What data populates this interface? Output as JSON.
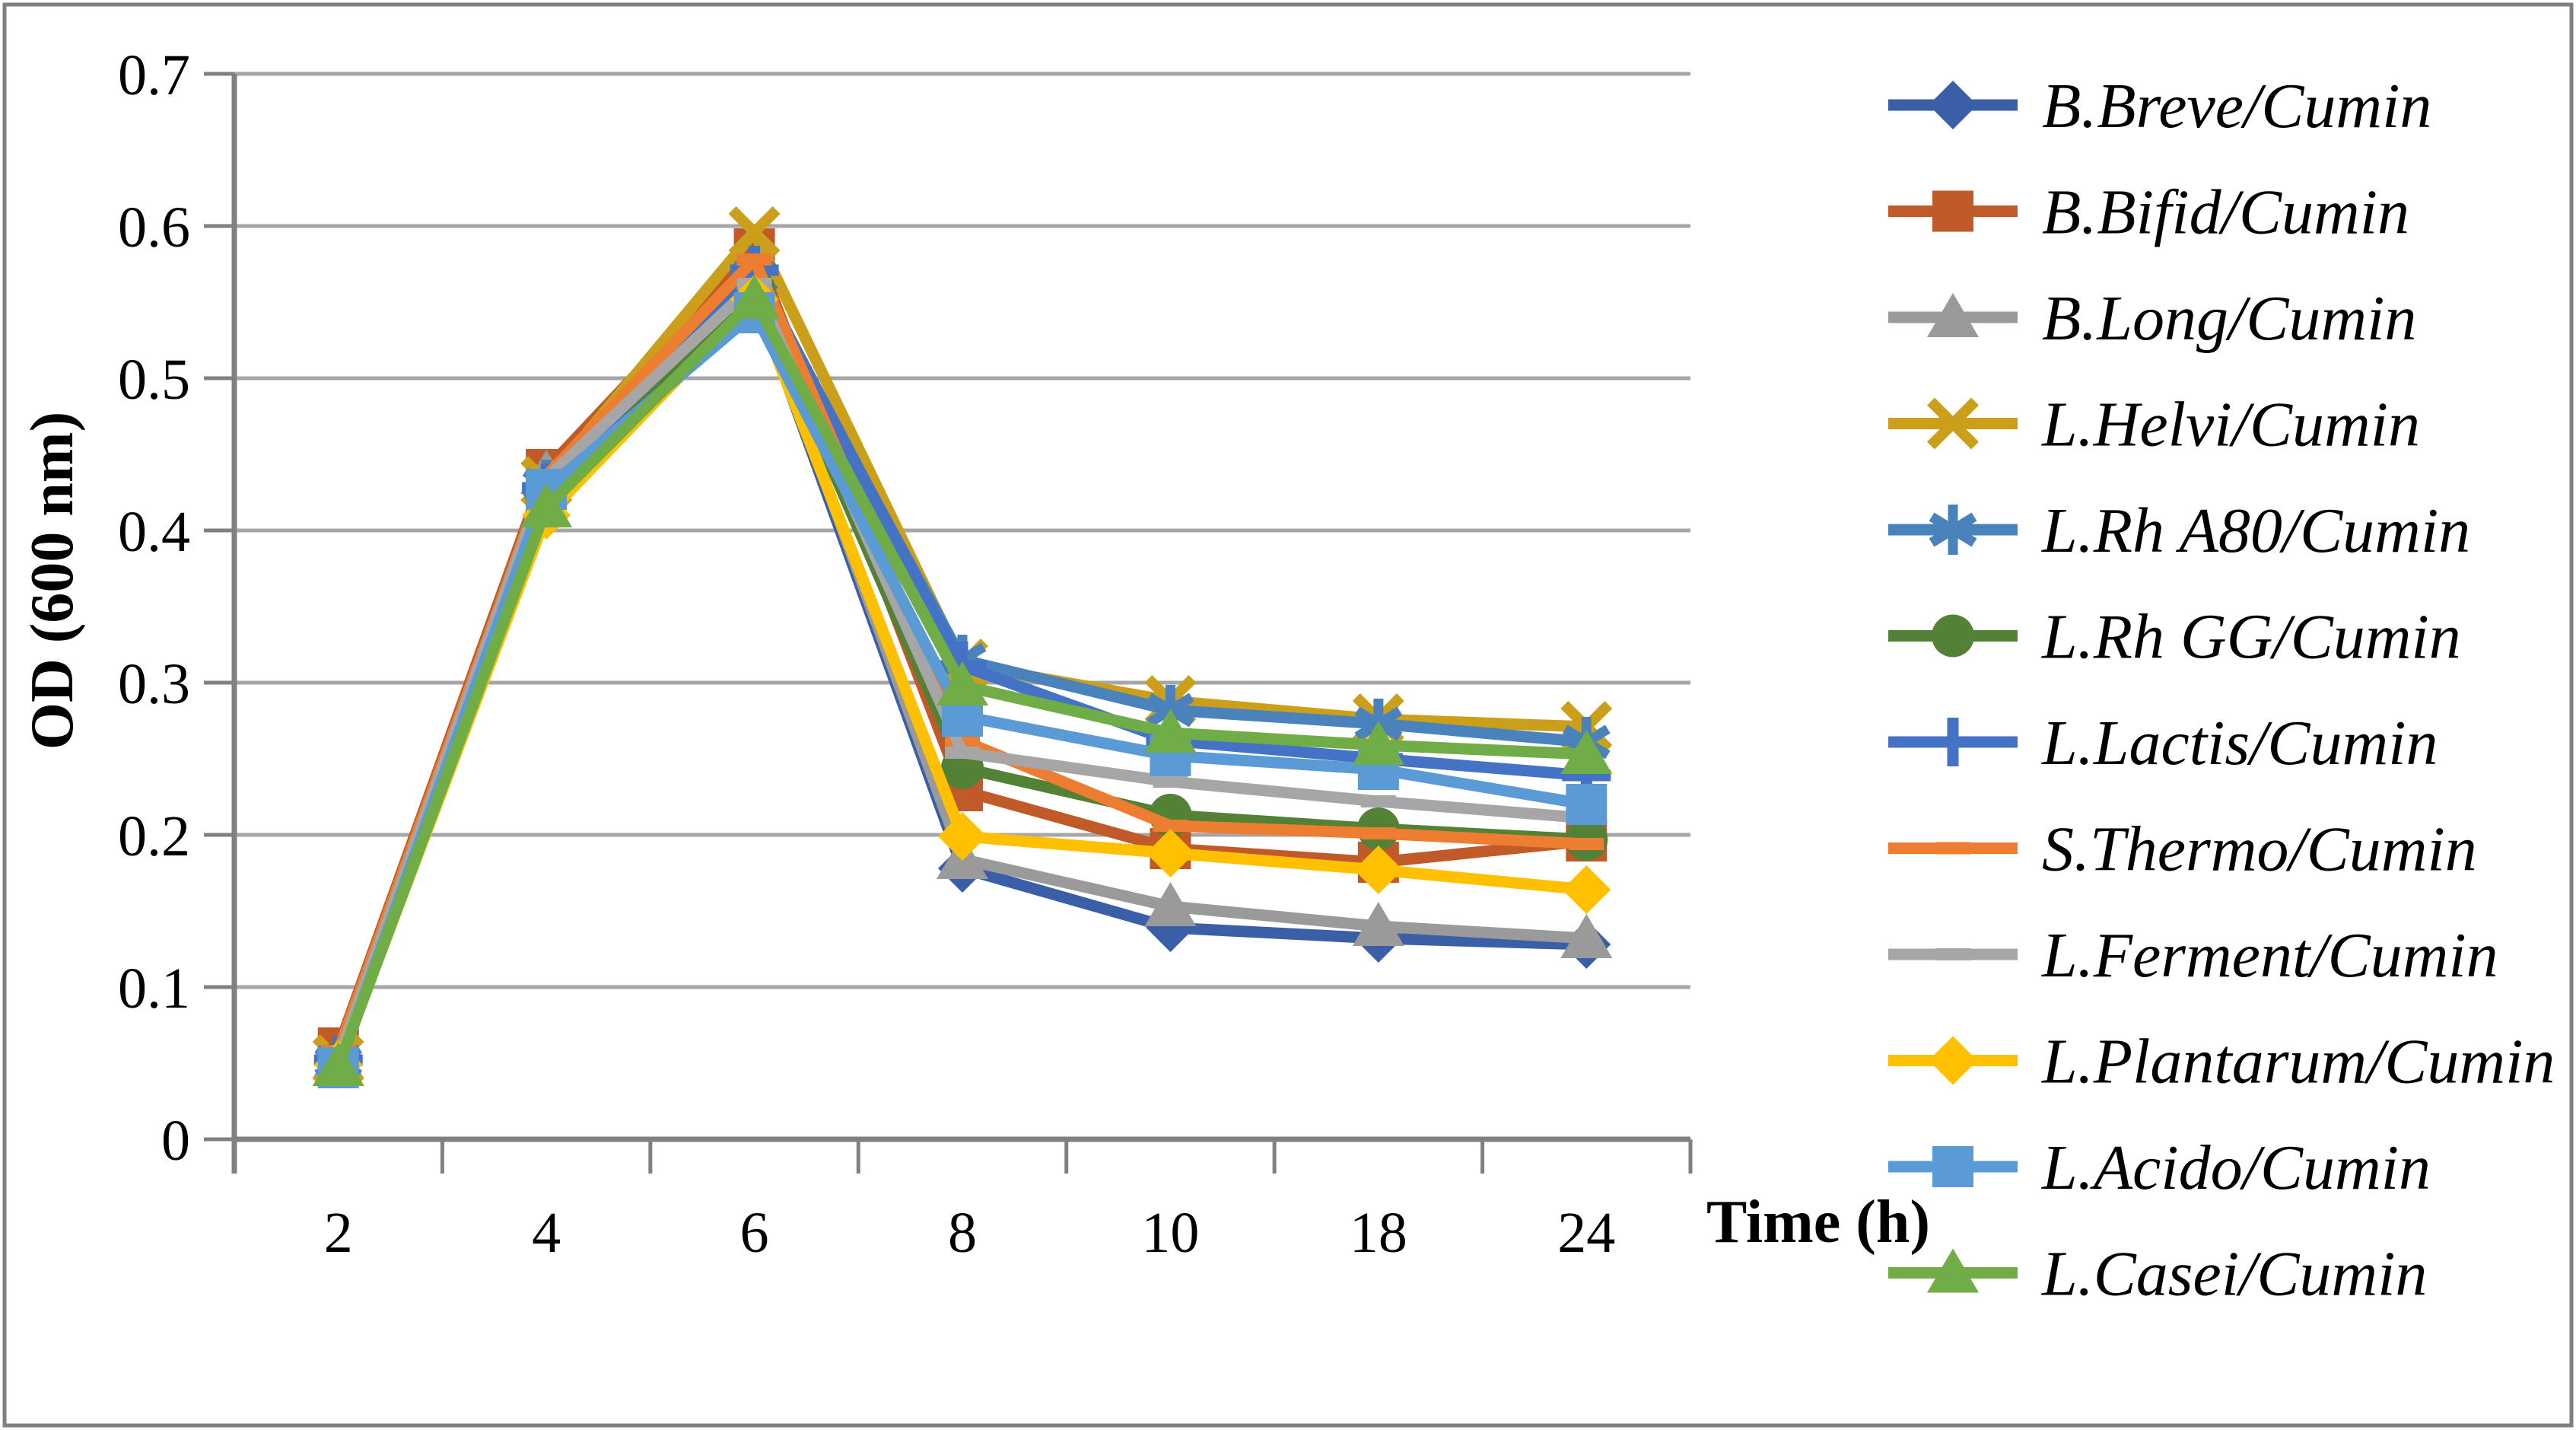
{
  "chart_data": {
    "type": "line",
    "title": "",
    "xlabel": "Time (h)",
    "ylabel": "OD (600 nm)",
    "x_categories": [
      "2",
      "4",
      "6",
      "8",
      "10",
      "18",
      "24"
    ],
    "y_tick_labels": [
      "0",
      "0.1",
      "0.2",
      "0.3",
      "0.4",
      "0.5",
      "0.6",
      "0.7"
    ],
    "ylim": [
      0,
      0.7
    ],
    "y_tick_step": 0.1,
    "grid": true,
    "legend_position": "right",
    "series": [
      {
        "name": "B.Breve/Cumin",
        "color": "#3A5FA6",
        "marker": "diamond",
        "values": [
          0.052,
          0.425,
          0.556,
          0.178,
          0.139,
          0.132,
          0.128
        ]
      },
      {
        "name": "B.Bifid/Cumin",
        "color": "#C05A28",
        "marker": "square",
        "values": [
          0.06,
          0.44,
          0.585,
          0.229,
          0.191,
          0.182,
          0.196
        ]
      },
      {
        "name": "B.Long/Cumin",
        "color": "#9A9A9A",
        "marker": "triangle",
        "values": [
          0.053,
          0.437,
          0.56,
          0.184,
          0.153,
          0.14,
          0.132
        ]
      },
      {
        "name": "L.Helvi/Cumin",
        "color": "#CC9F1A",
        "marker": "x",
        "values": [
          0.052,
          0.432,
          0.596,
          0.312,
          0.288,
          0.276,
          0.271
        ]
      },
      {
        "name": "L.Rh A80/Cumin",
        "color": "#4A82BC",
        "marker": "asterisk",
        "values": [
          0.051,
          0.43,
          0.566,
          0.315,
          0.282,
          0.273,
          0.261
        ]
      },
      {
        "name": "L.Rh GG/Cumin",
        "color": "#538135",
        "marker": "circle",
        "values": [
          0.05,
          0.423,
          0.558,
          0.244,
          0.213,
          0.204,
          0.197
        ]
      },
      {
        "name": "L.Lactis/Cumin",
        "color": "#4472C4",
        "marker": "plus",
        "values": [
          0.052,
          0.428,
          0.571,
          0.311,
          0.262,
          0.25,
          0.239
        ]
      },
      {
        "name": "S.Thermo/Cumin",
        "color": "#ED7D31",
        "marker": "dash",
        "values": [
          0.058,
          0.436,
          0.578,
          0.262,
          0.206,
          0.201,
          0.194
        ]
      },
      {
        "name": "L.Ferment/Cumin",
        "color": "#A6A6A6",
        "marker": "dash",
        "values": [
          0.053,
          0.434,
          0.562,
          0.254,
          0.235,
          0.222,
          0.211
        ]
      },
      {
        "name": "L.Plantarum/Cumin",
        "color": "#FFC000",
        "marker": "diamond",
        "values": [
          0.049,
          0.41,
          0.552,
          0.199,
          0.188,
          0.177,
          0.164
        ]
      },
      {
        "name": "L.Acido/Cumin",
        "color": "#5B9BD5",
        "marker": "square",
        "values": [
          0.047,
          0.427,
          0.543,
          0.278,
          0.252,
          0.243,
          0.22
        ]
      },
      {
        "name": "L.Casei/Cumin",
        "color": "#70AD47",
        "marker": "triangle",
        "values": [
          0.048,
          0.415,
          0.552,
          0.298,
          0.267,
          0.259,
          0.253
        ]
      }
    ],
    "colors": {
      "gridline": "#A6A6A6",
      "axis": "#808080",
      "border": "#7F7F7F",
      "background": "#FFFFFF",
      "text": "#000000"
    }
  }
}
